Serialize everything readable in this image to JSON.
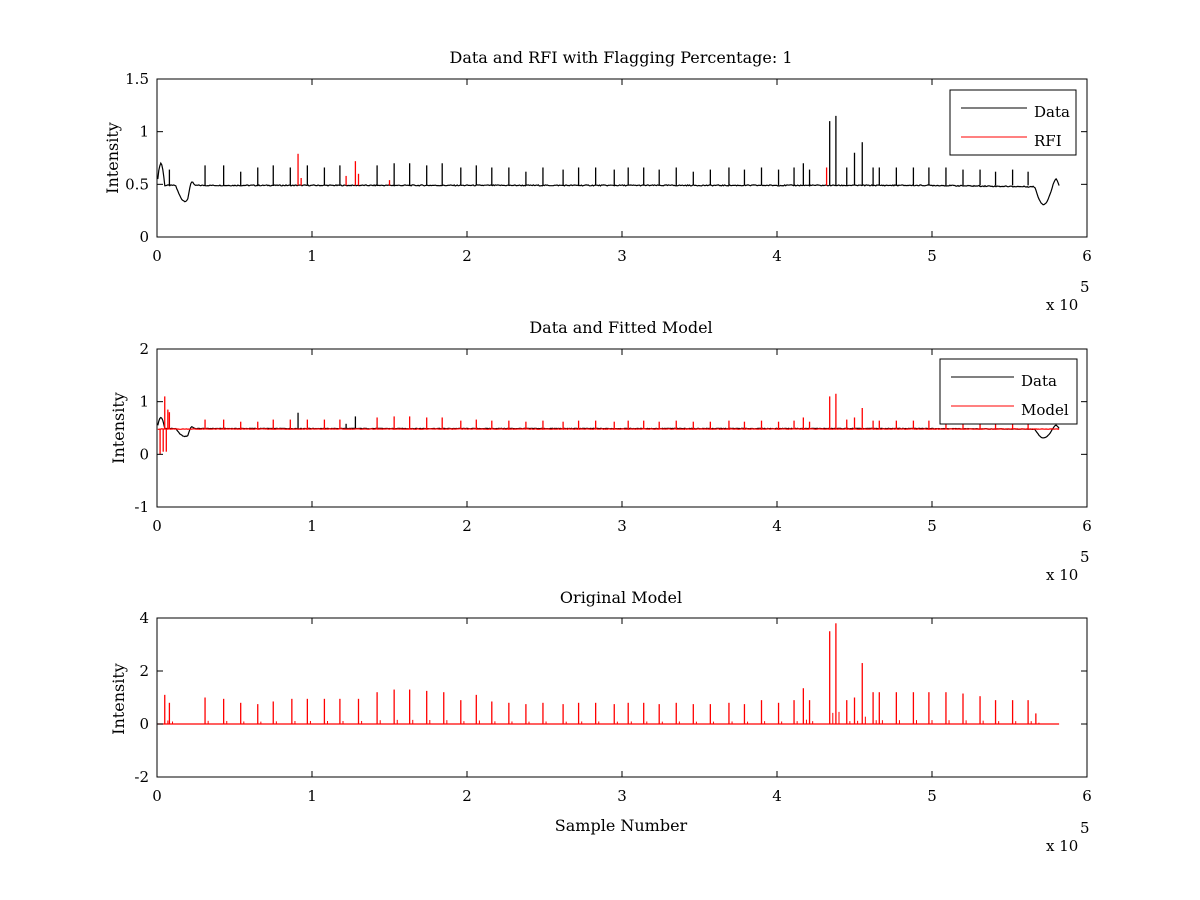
{
  "chart_data": [
    {
      "type": "line",
      "title": "Data and RFI with Flagging Percentage: 1",
      "xlabel": "",
      "ylabel": "Intensity",
      "xlim": [
        0,
        6
      ],
      "ylim": [
        0,
        1.5
      ],
      "xticks": [
        "0",
        "1",
        "2",
        "3",
        "4",
        "5",
        "6"
      ],
      "yticks": [
        "0",
        "0.5",
        "1",
        "1.5"
      ],
      "x_exponent": "x 10",
      "x_exponent_power": "5",
      "legend_position": "top-right",
      "series": [
        {
          "name": "Data",
          "color": "#000000",
          "baseline": 0.49,
          "features": [
            {
              "x": 0.02,
              "y": 0.7
            },
            {
              "x": 0.18,
              "y": 0.35
            },
            {
              "x": 5.72,
              "y": 0.31
            },
            {
              "x": 5.8,
              "y": 0.55
            }
          ],
          "spikes": [
            {
              "x": 0.08,
              "y": 0.64
            },
            {
              "x": 0.31,
              "y": 0.68
            },
            {
              "x": 0.43,
              "y": 0.68
            },
            {
              "x": 0.54,
              "y": 0.62
            },
            {
              "x": 0.65,
              "y": 0.66
            },
            {
              "x": 0.75,
              "y": 0.68
            },
            {
              "x": 0.86,
              "y": 0.66
            },
            {
              "x": 0.97,
              "y": 0.68
            },
            {
              "x": 1.08,
              "y": 0.66
            },
            {
              "x": 1.18,
              "y": 0.68
            },
            {
              "x": 1.42,
              "y": 0.68
            },
            {
              "x": 1.53,
              "y": 0.7
            },
            {
              "x": 1.63,
              "y": 0.7
            },
            {
              "x": 1.74,
              "y": 0.68
            },
            {
              "x": 1.84,
              "y": 0.7
            },
            {
              "x": 1.96,
              "y": 0.66
            },
            {
              "x": 2.06,
              "y": 0.68
            },
            {
              "x": 2.16,
              "y": 0.66
            },
            {
              "x": 2.27,
              "y": 0.66
            },
            {
              "x": 2.38,
              "y": 0.62
            },
            {
              "x": 2.49,
              "y": 0.66
            },
            {
              "x": 2.62,
              "y": 0.64
            },
            {
              "x": 2.72,
              "y": 0.66
            },
            {
              "x": 2.83,
              "y": 0.66
            },
            {
              "x": 2.95,
              "y": 0.64
            },
            {
              "x": 3.04,
              "y": 0.66
            },
            {
              "x": 3.14,
              "y": 0.66
            },
            {
              "x": 3.24,
              "y": 0.64
            },
            {
              "x": 3.35,
              "y": 0.66
            },
            {
              "x": 3.46,
              "y": 0.62
            },
            {
              "x": 3.57,
              "y": 0.64
            },
            {
              "x": 3.69,
              "y": 0.66
            },
            {
              "x": 3.79,
              "y": 0.64
            },
            {
              "x": 3.9,
              "y": 0.66
            },
            {
              "x": 4.01,
              "y": 0.64
            },
            {
              "x": 4.11,
              "y": 0.66
            },
            {
              "x": 4.17,
              "y": 0.7
            },
            {
              "x": 4.21,
              "y": 0.64
            },
            {
              "x": 4.34,
              "y": 1.1
            },
            {
              "x": 4.38,
              "y": 1.15
            },
            {
              "x": 4.45,
              "y": 0.66
            },
            {
              "x": 4.5,
              "y": 0.8
            },
            {
              "x": 4.55,
              "y": 0.9
            },
            {
              "x": 4.62,
              "y": 0.66
            },
            {
              "x": 4.66,
              "y": 0.66
            },
            {
              "x": 4.77,
              "y": 0.66
            },
            {
              "x": 4.88,
              "y": 0.66
            },
            {
              "x": 4.98,
              "y": 0.66
            },
            {
              "x": 5.09,
              "y": 0.66
            },
            {
              "x": 5.2,
              "y": 0.64
            },
            {
              "x": 5.31,
              "y": 0.64
            },
            {
              "x": 5.41,
              "y": 0.62
            },
            {
              "x": 5.52,
              "y": 0.64
            },
            {
              "x": 5.62,
              "y": 0.62
            }
          ]
        },
        {
          "name": "RFI",
          "color": "#ff0000",
          "spikes": [
            {
              "x": 0.91,
              "y": 0.79
            },
            {
              "x": 0.93,
              "y": 0.56
            },
            {
              "x": 1.22,
              "y": 0.58
            },
            {
              "x": 1.28,
              "y": 0.72
            },
            {
              "x": 1.3,
              "y": 0.6
            },
            {
              "x": 1.5,
              "y": 0.54
            },
            {
              "x": 4.32,
              "y": 0.66
            }
          ]
        }
      ]
    },
    {
      "type": "line",
      "title": "Data and Fitted Model",
      "xlabel": "",
      "ylabel": "Intensity",
      "xlim": [
        0,
        6
      ],
      "ylim": [
        -1,
        2
      ],
      "xticks": [
        "0",
        "1",
        "2",
        "3",
        "4",
        "5",
        "6"
      ],
      "yticks": [
        "-1",
        "0",
        "1",
        "2"
      ],
      "x_exponent": "x 10",
      "x_exponent_power": "5",
      "legend_position": "top-right",
      "series": [
        {
          "name": "Data",
          "color": "#000000",
          "baseline": 0.49,
          "features": [
            {
              "x": 0.02,
              "y": 0.7
            },
            {
              "x": 0.18,
              "y": 0.35
            },
            {
              "x": 5.72,
              "y": 0.31
            },
            {
              "x": 5.8,
              "y": 0.55
            }
          ],
          "spikes": [
            {
              "x": 0.91,
              "y": 0.79
            },
            {
              "x": 1.28,
              "y": 0.72
            },
            {
              "x": 1.22,
              "y": 0.58
            }
          ]
        },
        {
          "name": "Model",
          "color": "#ff0000",
          "baseline": 0.48,
          "spikes": [
            {
              "x": 0.05,
              "y": 1.1
            },
            {
              "x": 0.07,
              "y": 0.85
            },
            {
              "x": 0.08,
              "y": 0.8
            },
            {
              "x": 0.31,
              "y": 0.66
            },
            {
              "x": 0.43,
              "y": 0.66
            },
            {
              "x": 0.54,
              "y": 0.62
            },
            {
              "x": 0.65,
              "y": 0.62
            },
            {
              "x": 0.75,
              "y": 0.66
            },
            {
              "x": 0.86,
              "y": 0.66
            },
            {
              "x": 0.97,
              "y": 0.66
            },
            {
              "x": 1.08,
              "y": 0.66
            },
            {
              "x": 1.18,
              "y": 0.66
            },
            {
              "x": 1.42,
              "y": 0.7
            },
            {
              "x": 1.53,
              "y": 0.72
            },
            {
              "x": 1.63,
              "y": 0.72
            },
            {
              "x": 1.74,
              "y": 0.7
            },
            {
              "x": 1.84,
              "y": 0.7
            },
            {
              "x": 1.96,
              "y": 0.64
            },
            {
              "x": 2.06,
              "y": 0.66
            },
            {
              "x": 2.16,
              "y": 0.64
            },
            {
              "x": 2.27,
              "y": 0.64
            },
            {
              "x": 2.38,
              "y": 0.62
            },
            {
              "x": 2.49,
              "y": 0.64
            },
            {
              "x": 2.62,
              "y": 0.62
            },
            {
              "x": 2.72,
              "y": 0.64
            },
            {
              "x": 2.83,
              "y": 0.64
            },
            {
              "x": 2.95,
              "y": 0.62
            },
            {
              "x": 3.04,
              "y": 0.64
            },
            {
              "x": 3.14,
              "y": 0.64
            },
            {
              "x": 3.24,
              "y": 0.62
            },
            {
              "x": 3.35,
              "y": 0.64
            },
            {
              "x": 3.46,
              "y": 0.62
            },
            {
              "x": 3.57,
              "y": 0.62
            },
            {
              "x": 3.69,
              "y": 0.64
            },
            {
              "x": 3.79,
              "y": 0.62
            },
            {
              "x": 3.9,
              "y": 0.64
            },
            {
              "x": 4.01,
              "y": 0.62
            },
            {
              "x": 4.11,
              "y": 0.64
            },
            {
              "x": 4.17,
              "y": 0.7
            },
            {
              "x": 4.21,
              "y": 0.62
            },
            {
              "x": 4.34,
              "y": 1.1
            },
            {
              "x": 4.38,
              "y": 1.15
            },
            {
              "x": 4.45,
              "y": 0.66
            },
            {
              "x": 4.5,
              "y": 0.7
            },
            {
              "x": 4.55,
              "y": 0.88
            },
            {
              "x": 4.62,
              "y": 0.64
            },
            {
              "x": 4.66,
              "y": 0.64
            },
            {
              "x": 4.77,
              "y": 0.64
            },
            {
              "x": 4.88,
              "y": 0.64
            },
            {
              "x": 4.98,
              "y": 0.64
            },
            {
              "x": 5.09,
              "y": 0.66
            },
            {
              "x": 5.2,
              "y": 0.64
            },
            {
              "x": 5.31,
              "y": 0.62
            },
            {
              "x": 5.41,
              "y": 0.6
            },
            {
              "x": 5.52,
              "y": 0.6
            },
            {
              "x": 5.62,
              "y": 0.6
            }
          ],
          "dips": [
            {
              "x": 0.02,
              "y": 0.0
            },
            {
              "x": 0.04,
              "y": 0.05
            },
            {
              "x": 0.06,
              "y": 0.05
            }
          ]
        }
      ]
    },
    {
      "type": "line",
      "title": "Original Model",
      "xlabel": "Sample Number",
      "ylabel": "Intensity",
      "xlim": [
        0,
        6
      ],
      "ylim": [
        -2,
        4
      ],
      "xticks": [
        "0",
        "1",
        "2",
        "3",
        "4",
        "5",
        "6"
      ],
      "yticks": [
        "-2",
        "0",
        "2",
        "4"
      ],
      "x_exponent": "x 10",
      "x_exponent_power": "5",
      "series": [
        {
          "color": "#ff0000",
          "baseline": 0.0,
          "spikes": [
            {
              "x": 0.05,
              "y": 1.1
            },
            {
              "x": 0.08,
              "y": 0.8
            },
            {
              "x": 0.31,
              "y": 1.0
            },
            {
              "x": 0.43,
              "y": 0.95
            },
            {
              "x": 0.54,
              "y": 0.8
            },
            {
              "x": 0.65,
              "y": 0.75
            },
            {
              "x": 0.75,
              "y": 0.85
            },
            {
              "x": 0.87,
              "y": 0.95
            },
            {
              "x": 0.97,
              "y": 0.95
            },
            {
              "x": 1.08,
              "y": 0.95
            },
            {
              "x": 1.18,
              "y": 0.95
            },
            {
              "x": 1.3,
              "y": 0.95
            },
            {
              "x": 1.42,
              "y": 1.2
            },
            {
              "x": 1.53,
              "y": 1.3
            },
            {
              "x": 1.63,
              "y": 1.3
            },
            {
              "x": 1.74,
              "y": 1.25
            },
            {
              "x": 1.85,
              "y": 1.2
            },
            {
              "x": 1.96,
              "y": 0.9
            },
            {
              "x": 2.06,
              "y": 1.1
            },
            {
              "x": 2.16,
              "y": 0.85
            },
            {
              "x": 2.27,
              "y": 0.8
            },
            {
              "x": 2.38,
              "y": 0.75
            },
            {
              "x": 2.49,
              "y": 0.8
            },
            {
              "x": 2.62,
              "y": 0.75
            },
            {
              "x": 2.72,
              "y": 0.8
            },
            {
              "x": 2.83,
              "y": 0.8
            },
            {
              "x": 2.95,
              "y": 0.75
            },
            {
              "x": 3.04,
              "y": 0.8
            },
            {
              "x": 3.14,
              "y": 0.8
            },
            {
              "x": 3.24,
              "y": 0.75
            },
            {
              "x": 3.35,
              "y": 0.8
            },
            {
              "x": 3.46,
              "y": 0.75
            },
            {
              "x": 3.57,
              "y": 0.75
            },
            {
              "x": 3.69,
              "y": 0.8
            },
            {
              "x": 3.79,
              "y": 0.75
            },
            {
              "x": 3.9,
              "y": 0.9
            },
            {
              "x": 4.01,
              "y": 0.8
            },
            {
              "x": 4.11,
              "y": 0.9
            },
            {
              "x": 4.17,
              "y": 1.35
            },
            {
              "x": 4.21,
              "y": 0.9
            },
            {
              "x": 4.34,
              "y": 3.5
            },
            {
              "x": 4.38,
              "y": 3.8
            },
            {
              "x": 4.45,
              "y": 0.9
            },
            {
              "x": 4.5,
              "y": 1.0
            },
            {
              "x": 4.55,
              "y": 2.3
            },
            {
              "x": 4.62,
              "y": 1.2
            },
            {
              "x": 4.66,
              "y": 1.2
            },
            {
              "x": 4.77,
              "y": 1.2
            },
            {
              "x": 4.88,
              "y": 1.2
            },
            {
              "x": 4.98,
              "y": 1.2
            },
            {
              "x": 5.09,
              "y": 1.2
            },
            {
              "x": 5.2,
              "y": 1.15
            },
            {
              "x": 5.31,
              "y": 1.05
            },
            {
              "x": 5.41,
              "y": 0.9
            },
            {
              "x": 5.52,
              "y": 0.9
            },
            {
              "x": 5.62,
              "y": 0.9
            },
            {
              "x": 5.67,
              "y": 0.4
            }
          ]
        }
      ]
    }
  ]
}
